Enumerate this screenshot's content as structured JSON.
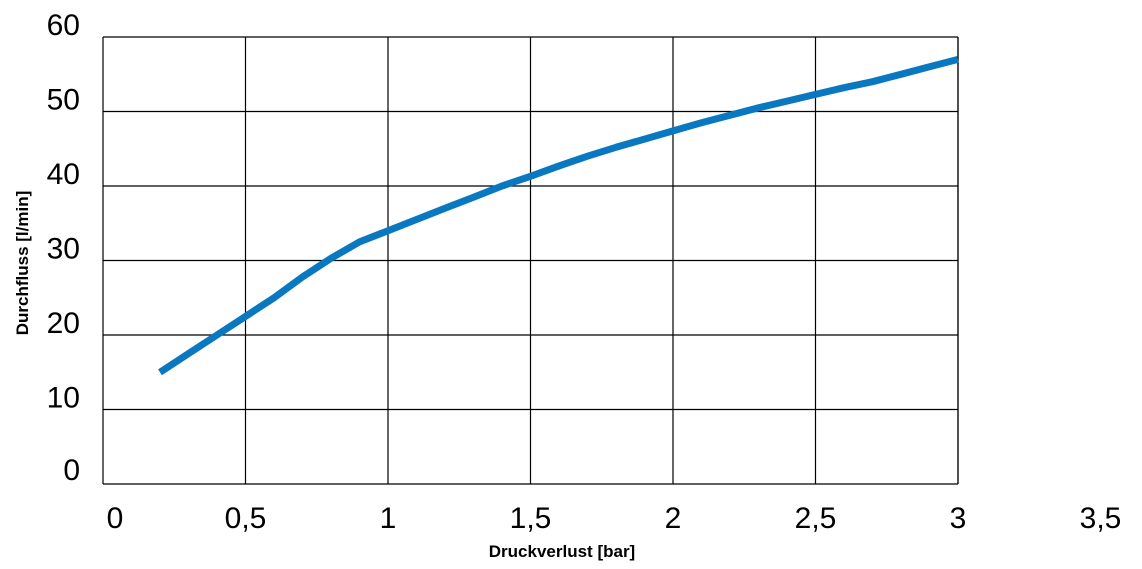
{
  "chart_data": {
    "type": "line",
    "title": "",
    "xlabel": "Druckverlust [bar]",
    "ylabel": "Durchfluss [l/min]",
    "xlim": [
      0,
      3.5
    ],
    "ylim": [
      0,
      60
    ],
    "x_ticks": [
      "0",
      "0,5",
      "1",
      "1,5",
      "2",
      "2,5",
      "3",
      "3,5"
    ],
    "y_ticks": [
      "0",
      "10",
      "20",
      "30",
      "40",
      "50",
      "60"
    ],
    "grid": true,
    "legend": "none",
    "line_color": "#0a78c0",
    "series": [
      {
        "x": [
          0.2,
          0.3,
          0.4,
          0.5,
          0.6,
          0.7,
          0.8,
          0.9,
          1.0,
          1.1,
          1.2,
          1.3,
          1.4,
          1.5,
          1.6,
          1.7,
          1.8,
          1.9,
          2.0,
          2.1,
          2.2,
          2.3,
          2.4,
          2.5,
          2.6,
          2.7,
          2.8,
          2.9,
          3.0
        ],
        "y": [
          15.0,
          17.5,
          20.0,
          22.5,
          25.0,
          27.8,
          30.3,
          32.5,
          34.0,
          35.5,
          37.0,
          38.5,
          40.0,
          41.3,
          42.7,
          44.0,
          45.2,
          46.3,
          47.4,
          48.5,
          49.5,
          50.5,
          51.4,
          52.3,
          53.2,
          54.0,
          55.0,
          56.0,
          57.0
        ]
      }
    ]
  }
}
